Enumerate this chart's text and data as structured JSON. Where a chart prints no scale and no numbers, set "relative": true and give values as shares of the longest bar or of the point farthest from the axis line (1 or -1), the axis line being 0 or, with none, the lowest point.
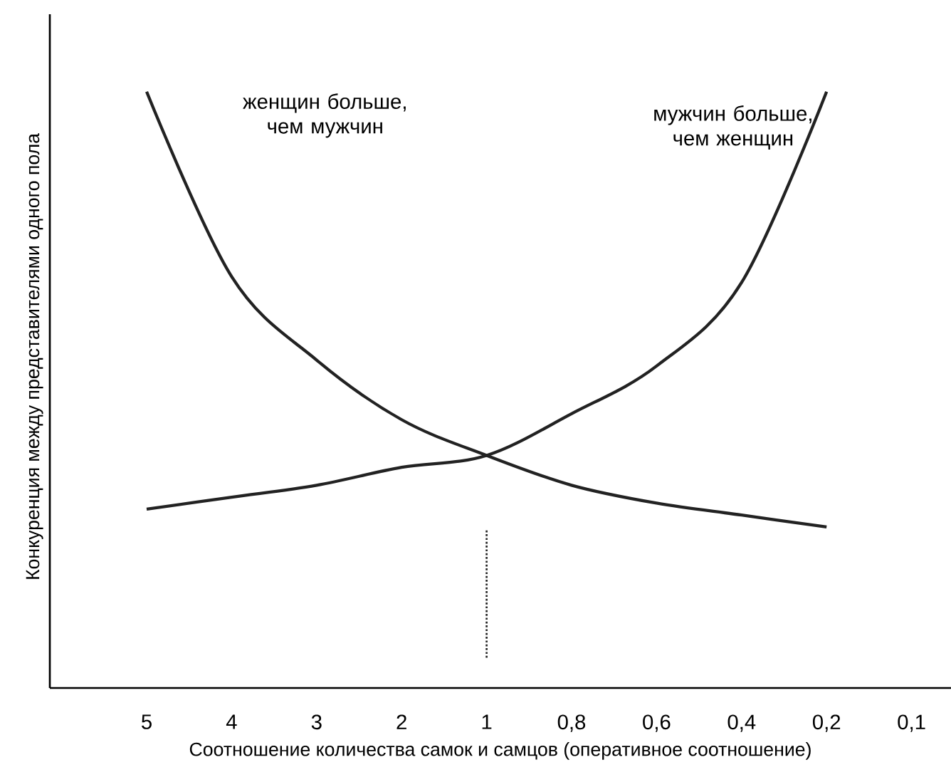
{
  "chart_data": {
    "type": "line",
    "relative": true,
    "xlabel": "Соотношение количества самок и самцов (оперативное соотношение)",
    "ylabel": "Конкуренция между представителями одного пола",
    "categories": [
      "5",
      "4",
      "3",
      "2",
      "1",
      "0,8",
      "0,6",
      "0,4",
      "0,2",
      "0,1"
    ],
    "series": [
      {
        "color": "#222222",
        "values": [
          1.0,
          0.69,
          0.55,
          0.45,
          0.39,
          0.34,
          0.31,
          0.29,
          0.27,
          null
        ]
      },
      {
        "color": "#222222",
        "values": [
          0.3,
          0.32,
          0.34,
          0.37,
          0.39,
          0.46,
          0.54,
          0.68,
          1.0,
          null
        ]
      }
    ],
    "annotations": [
      "женщин больше, чем мужчин",
      "мужчин больше, чем женщин"
    ],
    "ref_lines": [
      {
        "axis": "x",
        "value": "1",
        "line_style": "dotted",
        "color": "#222222"
      }
    ]
  }
}
